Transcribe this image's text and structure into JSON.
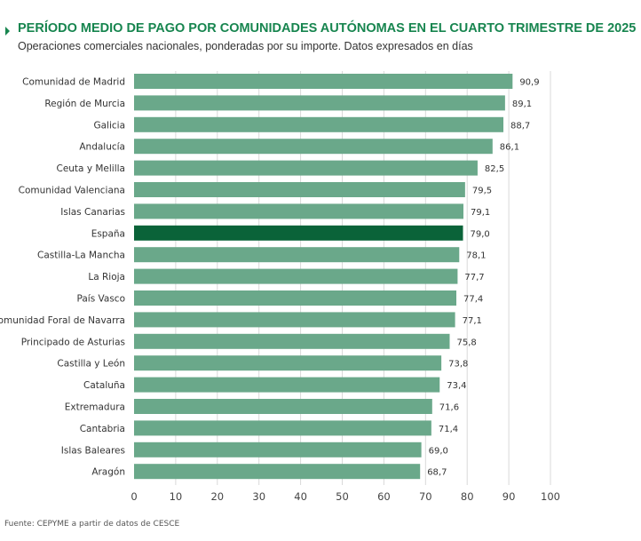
{
  "header": {
    "title": "PERÍODO MEDIO DE PAGO POR COMUNIDADES AUTÓNOMAS EN EL CUARTO TRIMESTRE DE 2025",
    "subtitle": "Operaciones comerciales nacionales, ponderadas por su importe. Datos expresados en días"
  },
  "source": "Fuente: CEPYME a partir de datos de CESCE",
  "colors": {
    "bar": "#6aa88a",
    "highlight": "#0a6339",
    "title": "#17854f",
    "grid": "#d9d9d9"
  },
  "chart_data": {
    "type": "bar",
    "orientation": "horizontal",
    "categories": [
      "Comunidad de Madrid",
      "Región de Murcia",
      "Galicia",
      "Andalucía",
      "Ceuta y Melilla",
      "Comunidad Valenciana",
      "Islas Canarias",
      "España",
      "Castilla-La Mancha",
      "La Rioja",
      "País Vasco",
      "Comunidad Foral de Navarra",
      "Principado de Asturias",
      "Castilla y León",
      "Cataluña",
      "Extremadura",
      "Cantabria",
      "Islas Baleares",
      "Aragón"
    ],
    "values": [
      90.9,
      89.1,
      88.7,
      86.1,
      82.5,
      79.5,
      79.1,
      79.0,
      78.1,
      77.7,
      77.4,
      77.1,
      75.8,
      73.8,
      73.4,
      71.6,
      71.4,
      69.0,
      68.7
    ],
    "value_labels": [
      "90,9",
      "89,1",
      "88,7",
      "86,1",
      "82,5",
      "79,5",
      "79,1",
      "79,0",
      "78,1",
      "77,7",
      "77,4",
      "77,1",
      "75,8",
      "73,8",
      "73,4",
      "71,6",
      "71,4",
      "69,0",
      "68,7"
    ],
    "highlight_category": "España",
    "xlim": [
      0,
      100
    ],
    "xticks": [
      0,
      10,
      20,
      30,
      40,
      50,
      60,
      70,
      80,
      90,
      100
    ],
    "grid": true,
    "legend": "none"
  }
}
